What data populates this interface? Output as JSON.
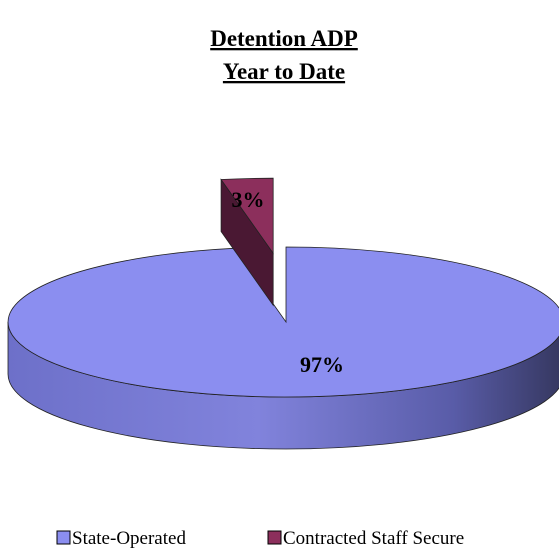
{
  "chart_data": {
    "type": "pie",
    "style": "3d-exploded",
    "title": [
      "Detention ADP",
      "Year to Date"
    ],
    "slices": [
      {
        "label": "State-Operated",
        "value": 97,
        "display": "97%",
        "color": "#8b8ef0"
      },
      {
        "label": "Contracted Staff Secure",
        "value": 3,
        "display": "3%",
        "color": "#8c2f5c"
      }
    ],
    "legend": {
      "position": "bottom"
    }
  }
}
